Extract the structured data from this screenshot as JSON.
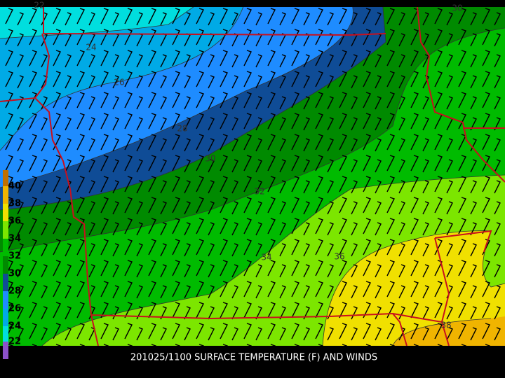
{
  "caption": "201025/1100 SURFACE TEMPERATURE (F) AND WINDS",
  "legend": {
    "labels": [
      "40",
      "38",
      "36",
      "34",
      "32",
      "30",
      "28",
      "26",
      "24",
      "22"
    ]
  },
  "contour_labels": [
    "22",
    "24",
    "26",
    "28",
    "30",
    "32",
    "34",
    "36",
    "38",
    "30"
  ]
}
